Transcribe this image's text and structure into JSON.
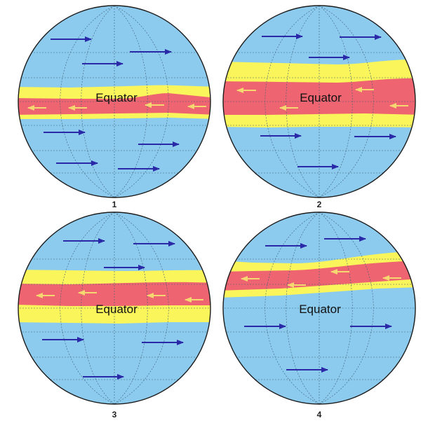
{
  "colors": {
    "ocean": "#8CCBEE",
    "outline": "#1c1c1c",
    "grid": "#3f5f78",
    "yellow_band": "#FAF55A",
    "red_band": "#EE6470",
    "westerly_arrow": "#2A2AA8",
    "easterly_arrow": "#F6D870"
  },
  "globes": [
    {
      "label": "1",
      "equator_label": "Equator",
      "red_band": {
        "north_latitude": 4,
        "south_latitude": -4,
        "position": "centered on the equator, narrow"
      },
      "yellow_band": {
        "north_latitude": 8,
        "south_latitude": -9
      },
      "winds_outside_band": "eastward",
      "winds_inside_band": "westward"
    },
    {
      "label": "2",
      "equator_label": "Equator",
      "red_band": {
        "north_latitude": 12,
        "south_latitude": -7,
        "position": "centered on the equator, wide"
      },
      "yellow_band": {
        "north_latitude": 23,
        "south_latitude": -14
      },
      "winds_outside_band": "eastward",
      "winds_inside_band": "westward"
    },
    {
      "label": "3",
      "equator_label": "Equator",
      "red_band": {
        "north_latitude": 12,
        "south_latitude": 0,
        "position": "shifted north of the equator label"
      },
      "yellow_band": {
        "north_latitude": 18,
        "south_latitude": -11
      },
      "winds_outside_band": "eastward",
      "winds_inside_band": "westward"
    },
    {
      "label": "4",
      "equator_label": "Equator",
      "red_band": {
        "north_latitude": 20,
        "south_latitude": 8,
        "position": "shifted far north of the equator label"
      },
      "yellow_band": {
        "north_latitude": 28,
        "south_latitude": 6
      },
      "winds_outside_band": "eastward",
      "winds_inside_band": "westward"
    }
  ]
}
